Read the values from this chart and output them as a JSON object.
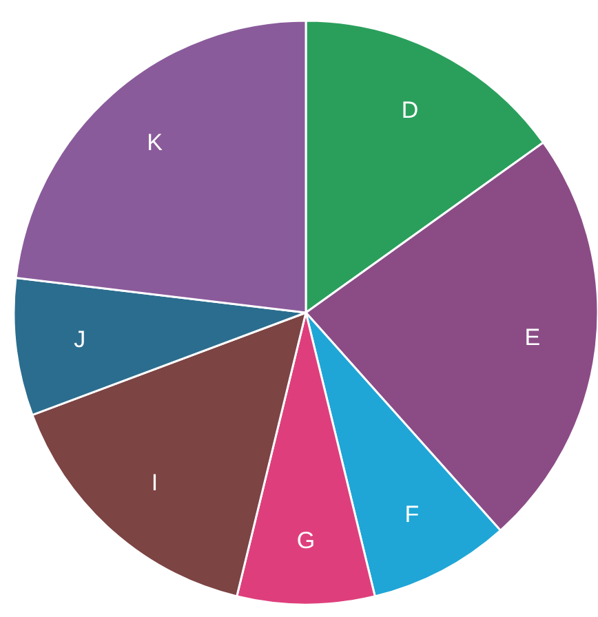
{
  "chart_data": {
    "type": "pie",
    "categories": [
      "D",
      "E",
      "F",
      "G",
      "I",
      "J",
      "K"
    ],
    "values": [
      15.1,
      23.3,
      7.8,
      7.6,
      15.5,
      7.6,
      23.1
    ],
    "colors": [
      "#2a9f5c",
      "#8b4c86",
      "#1fa6d6",
      "#de3f7c",
      "#7c4443",
      "#2b6d8e",
      "#8a5b9b"
    ],
    "legend": false
  }
}
